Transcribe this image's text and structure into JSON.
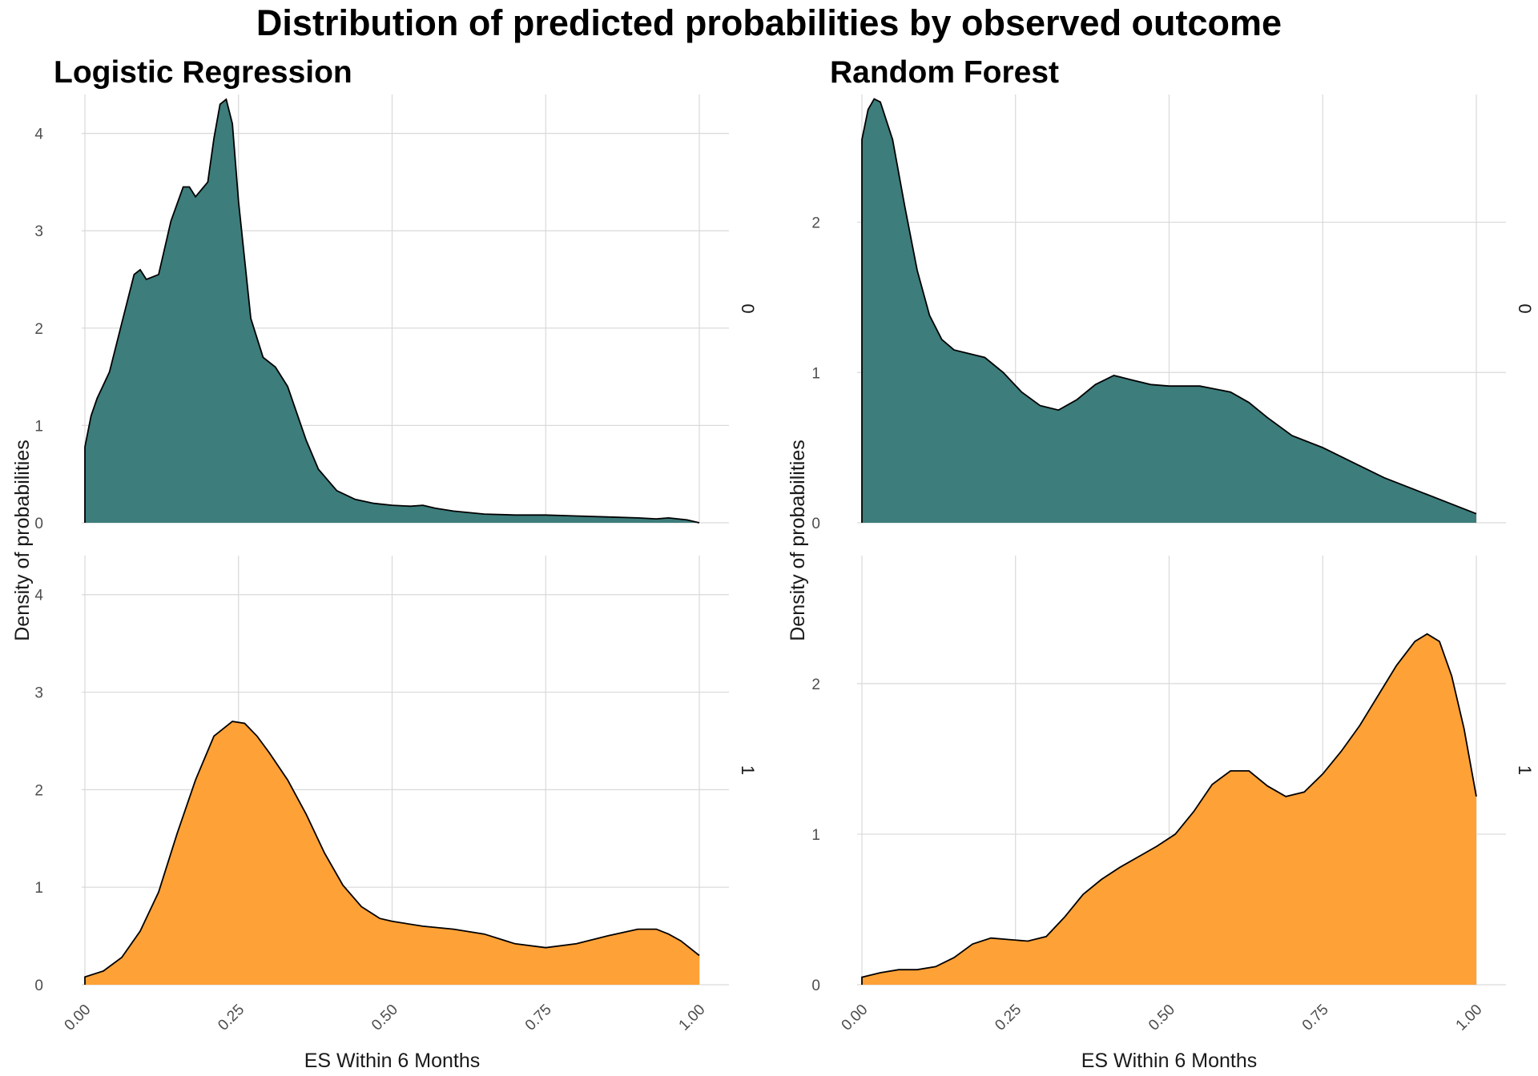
{
  "title": "Distribution of predicted probabilities by observed outcome",
  "colors": {
    "outcome_0": "#3d7d7c",
    "outcome_1": "#fea137"
  },
  "chart_data": [
    {
      "type": "area",
      "title": "Logistic Regression",
      "xlabel": "ES Within 6 Months",
      "ylabel": "Density of probabilities",
      "xlim": [
        0,
        1
      ],
      "ylim": [
        0,
        4.4
      ],
      "x_ticks": [
        "0.00",
        "0.25",
        "0.50",
        "0.75",
        "1.00"
      ],
      "y_ticks": [
        "0",
        "1",
        "2",
        "3",
        "4"
      ],
      "grid": true,
      "legend": "none",
      "facets": [
        "0",
        "1"
      ],
      "series": [
        {
          "facet": "0",
          "x": [
            0.0,
            0.01,
            0.02,
            0.04,
            0.06,
            0.08,
            0.09,
            0.1,
            0.12,
            0.14,
            0.16,
            0.17,
            0.18,
            0.2,
            0.21,
            0.22,
            0.23,
            0.24,
            0.25,
            0.27,
            0.29,
            0.31,
            0.33,
            0.36,
            0.38,
            0.41,
            0.44,
            0.47,
            0.5,
            0.53,
            0.55,
            0.57,
            0.6,
            0.65,
            0.7,
            0.75,
            0.8,
            0.85,
            0.9,
            0.93,
            0.95,
            0.98,
            1.0
          ],
          "y": [
            0.78,
            1.1,
            1.28,
            1.55,
            2.05,
            2.55,
            2.6,
            2.5,
            2.55,
            3.1,
            3.45,
            3.45,
            3.35,
            3.5,
            3.95,
            4.3,
            4.35,
            4.1,
            3.3,
            2.1,
            1.7,
            1.6,
            1.4,
            0.85,
            0.55,
            0.33,
            0.24,
            0.2,
            0.18,
            0.17,
            0.18,
            0.15,
            0.12,
            0.09,
            0.08,
            0.08,
            0.07,
            0.06,
            0.05,
            0.04,
            0.05,
            0.03,
            0.0
          ]
        },
        {
          "facet": "1",
          "x": [
            0.0,
            0.03,
            0.06,
            0.09,
            0.12,
            0.15,
            0.18,
            0.21,
            0.24,
            0.26,
            0.28,
            0.3,
            0.33,
            0.36,
            0.39,
            0.42,
            0.45,
            0.48,
            0.5,
            0.55,
            0.6,
            0.65,
            0.7,
            0.75,
            0.8,
            0.85,
            0.9,
            0.93,
            0.95,
            0.97,
            1.0
          ],
          "y": [
            0.08,
            0.14,
            0.28,
            0.55,
            0.95,
            1.55,
            2.1,
            2.55,
            2.7,
            2.68,
            2.55,
            2.38,
            2.1,
            1.75,
            1.35,
            1.02,
            0.8,
            0.68,
            0.65,
            0.6,
            0.57,
            0.52,
            0.42,
            0.38,
            0.42,
            0.5,
            0.57,
            0.57,
            0.52,
            0.45,
            0.3
          ]
        }
      ]
    },
    {
      "type": "area",
      "title": "Random Forest",
      "xlabel": "ES Within 6 Months",
      "ylabel": "Density of probabilities",
      "xlim": [
        0,
        1
      ],
      "ylim": [
        0,
        2.85
      ],
      "x_ticks": [
        "0.00",
        "0.25",
        "0.50",
        "0.75",
        "1.00"
      ],
      "y_ticks": [
        "0",
        "1",
        "2"
      ],
      "grid": true,
      "legend": "none",
      "facets": [
        "0",
        "1"
      ],
      "series": [
        {
          "facet": "0",
          "x": [
            0.0,
            0.01,
            0.02,
            0.03,
            0.05,
            0.07,
            0.09,
            0.11,
            0.13,
            0.15,
            0.17,
            0.2,
            0.23,
            0.26,
            0.29,
            0.32,
            0.35,
            0.38,
            0.41,
            0.44,
            0.47,
            0.5,
            0.55,
            0.6,
            0.63,
            0.66,
            0.7,
            0.75,
            0.8,
            0.85,
            0.9,
            0.95,
            1.0
          ],
          "y": [
            2.55,
            2.75,
            2.82,
            2.8,
            2.55,
            2.1,
            1.68,
            1.38,
            1.22,
            1.15,
            1.13,
            1.1,
            1.0,
            0.87,
            0.78,
            0.75,
            0.82,
            0.92,
            0.98,
            0.95,
            0.92,
            0.91,
            0.91,
            0.87,
            0.8,
            0.7,
            0.58,
            0.5,
            0.4,
            0.3,
            0.22,
            0.14,
            0.06
          ]
        },
        {
          "facet": "1",
          "x": [
            0.0,
            0.03,
            0.06,
            0.09,
            0.12,
            0.15,
            0.18,
            0.21,
            0.24,
            0.27,
            0.3,
            0.33,
            0.36,
            0.39,
            0.42,
            0.45,
            0.48,
            0.51,
            0.54,
            0.57,
            0.6,
            0.63,
            0.66,
            0.69,
            0.72,
            0.75,
            0.78,
            0.81,
            0.84,
            0.87,
            0.9,
            0.92,
            0.94,
            0.96,
            0.98,
            1.0
          ],
          "y": [
            0.05,
            0.08,
            0.1,
            0.1,
            0.12,
            0.18,
            0.27,
            0.31,
            0.3,
            0.29,
            0.32,
            0.45,
            0.6,
            0.7,
            0.78,
            0.85,
            0.92,
            1.0,
            1.15,
            1.33,
            1.42,
            1.42,
            1.32,
            1.25,
            1.28,
            1.4,
            1.55,
            1.72,
            1.92,
            2.12,
            2.28,
            2.33,
            2.28,
            2.05,
            1.7,
            1.25
          ]
        }
      ]
    }
  ]
}
